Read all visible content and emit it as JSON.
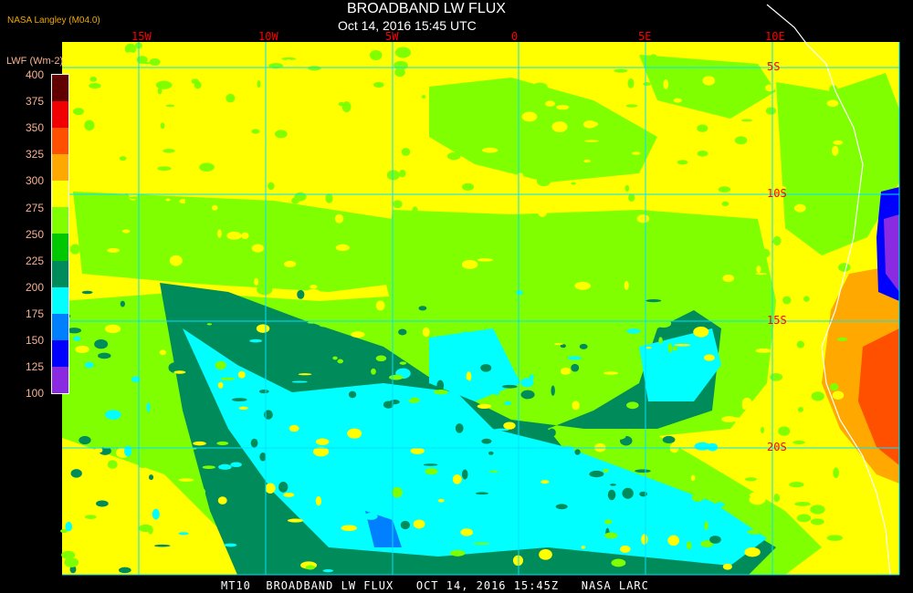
{
  "header": {
    "title": "BROADBAND LW FLUX",
    "subtitle": "Oct 14, 2016 15:45 UTC",
    "org": "NASA Langley (M04.0)"
  },
  "colorbar": {
    "label": "LWF (Wm-2)",
    "ticks": [
      "400",
      "375",
      "350",
      "325",
      "300",
      "275",
      "250",
      "225",
      "200",
      "175",
      "150",
      "125",
      "100"
    ],
    "colors": [
      "#600000",
      "#f00000",
      "#ff5000",
      "#ffa800",
      "#ffff00",
      "#80ff00",
      "#00c800",
      "#008c5a",
      "#00ffff",
      "#0080ff",
      "#0000ff",
      "#8a2be2"
    ]
  },
  "grid": {
    "longitudes": [
      "15W",
      "10W",
      "5W",
      "0",
      "5E",
      "10E"
    ],
    "latitudes": [
      "5S",
      "10S",
      "15S",
      "20S"
    ],
    "line_color": "#00e0ff",
    "label_color": "#ff0000"
  },
  "footer": {
    "text": "MT10  BROADBAND LW FLUX   OCT 14, 2016 15:45Z   NASA LARC"
  }
}
